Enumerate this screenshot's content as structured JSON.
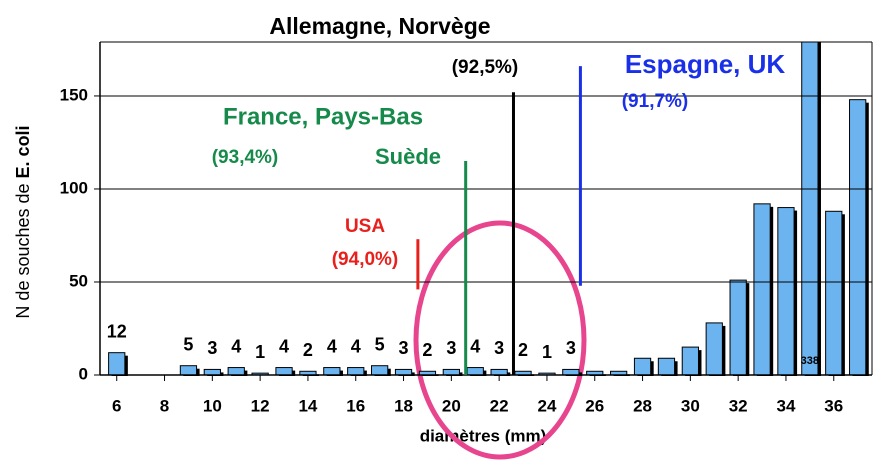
{
  "chart_data": {
    "type": "bar",
    "x_label": "diamètres (mm)",
    "y_label": {
      "text": "N de souches de",
      "emphasis": "E. coli"
    },
    "x": [
      6,
      7,
      8,
      9,
      10,
      11,
      12,
      13,
      14,
      15,
      16,
      17,
      18,
      19,
      20,
      21,
      22,
      23,
      24,
      25,
      26,
      27,
      28,
      29,
      30,
      31,
      32,
      33,
      34,
      35,
      36,
      37
    ],
    "values": [
      12,
      0,
      0,
      5,
      3,
      4,
      1,
      4,
      2,
      4,
      4,
      5,
      3,
      2,
      3,
      4,
      3,
      2,
      1,
      3,
      2,
      2,
      9,
      9,
      15,
      28,
      51,
      92,
      90,
      338,
      88,
      148
    ],
    "value_labels": [
      "12",
      null,
      null,
      "5",
      "3",
      "4",
      "1",
      "4",
      "2",
      "4",
      "4",
      "5",
      "3",
      "2",
      "3",
      "4",
      "3",
      "2",
      "1",
      "3",
      null,
      null,
      null,
      null,
      null,
      null,
      null,
      null,
      null,
      "338",
      null,
      null
    ],
    "color": "#6cb4f0",
    "xlim": [
      5.3,
      37.6
    ],
    "ylim": [
      0,
      179
    ],
    "xticks": [
      6,
      8,
      10,
      12,
      14,
      16,
      18,
      20,
      22,
      24,
      26,
      28,
      30,
      32,
      34,
      36
    ],
    "yticks": [
      0,
      50,
      100,
      150
    ],
    "annotations": [
      {
        "lines": [
          "USA",
          "(94,0%)"
        ],
        "x": 18.6,
        "y_range": [
          46,
          73
        ],
        "color": "#e8201c"
      },
      {
        "lines": [
          "France, Pays-Bas",
          "(93,4%)",
          "Suède"
        ],
        "x": 20.6,
        "y_range": [
          0,
          115
        ],
        "color": "#168a4a"
      },
      {
        "lines": [
          "Allemagne, Norvège",
          "(92,5%)"
        ],
        "x": 22.6,
        "y_range": [
          0,
          152
        ],
        "color": "#000000"
      },
      {
        "lines": [
          "Espagne, UK",
          "(91,7%)"
        ],
        "x": 25.4,
        "y_range": [
          48,
          166
        ],
        "color": "#1a2fe8"
      }
    ]
  }
}
